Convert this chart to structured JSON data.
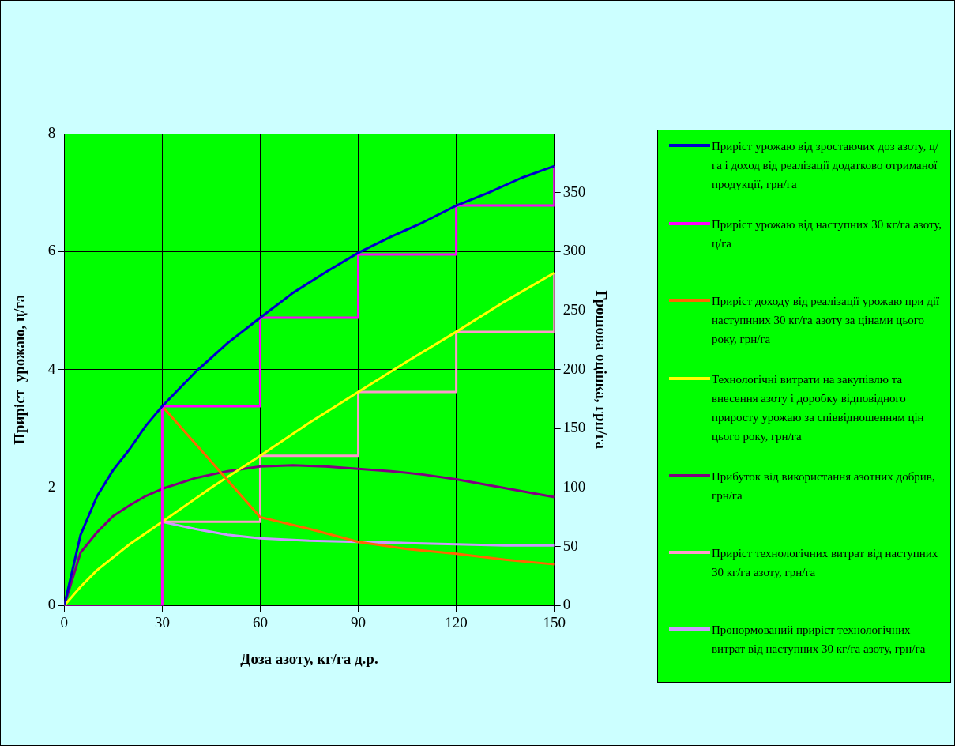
{
  "chart_data": {
    "type": "line",
    "xlabel": "Доза азоту, кг/га д.р.",
    "ylabel": "Приріст  урожаю, ц/га",
    "y2label": "Грошова оцінка, грн/га",
    "xlim": [
      0,
      150
    ],
    "xticks": [
      0,
      30,
      60,
      90,
      120,
      150
    ],
    "ylim": [
      0,
      8
    ],
    "yticks": [
      0,
      2,
      4,
      6,
      8
    ],
    "y2lim": [
      0,
      400
    ],
    "y2ticks": [
      0,
      50,
      100,
      150,
      200,
      250,
      300,
      350
    ],
    "grid": true,
    "legend": "right",
    "marker": "none",
    "series": [
      {
        "name": "Приріст  урожаю  від  зростаючих  доз азоту,  ц/га  і  доход  від  реалізації додатково  отриманої  продукції,  грн/га",
        "axis": "y",
        "color": "#0000cc",
        "x": [
          0,
          5,
          10,
          15,
          20,
          25,
          30,
          40,
          50,
          60,
          70,
          80,
          90,
          100,
          110,
          120,
          130,
          140,
          150
        ],
        "values": [
          0,
          1.2,
          1.85,
          2.3,
          2.65,
          3.05,
          3.38,
          3.95,
          4.45,
          4.88,
          5.3,
          5.65,
          5.98,
          6.25,
          6.5,
          6.78,
          7.0,
          7.25,
          7.45
        ]
      },
      {
        "name": "Приріст  урожаю  від  наступних  30 кг/га азоту, ц/га",
        "type": "step",
        "axis": "y",
        "color": "#ff00ff",
        "x": [
          0,
          30,
          60,
          90,
          120,
          150
        ],
        "values": [
          0,
          3.38,
          4.88,
          5.95,
          6.78,
          7.45
        ]
      },
      {
        "name": "Приріст  доходу  від реалізації   урожаю при  дії  наступнних  30 кг/га азоту за цінами  цього  року,  грн/га",
        "axis": "y2",
        "color": "#ff6600",
        "x": [
          30,
          60,
          75,
          90,
          105,
          120,
          135,
          150
        ],
        "values": [
          169,
          75,
          65,
          54,
          48,
          44,
          39,
          35
        ]
      },
      {
        "name": "Технологічні  витрати  на закупівлю  та внесення  азоту і доробку  відповідного приросту  урожаю  за співвідношенням цін   цього  року,  грн/га",
        "axis": "y2",
        "color": "#ffff00",
        "x": [
          0,
          5,
          10,
          20,
          30,
          45,
          60,
          75,
          90,
          105,
          120,
          135,
          150
        ],
        "values": [
          0,
          16,
          30,
          52,
          71,
          100,
          127,
          155,
          181,
          207,
          232,
          258,
          282
        ]
      },
      {
        "name": "Прибуток  від  використання  азотних добрив,  грн/га",
        "axis": "y2",
        "color": "#800080",
        "x": [
          0,
          5,
          10,
          15,
          20,
          25,
          30,
          40,
          50,
          60,
          70,
          80,
          90,
          100,
          110,
          120,
          130,
          140,
          150
        ],
        "values": [
          0,
          45,
          62,
          76,
          85,
          93,
          99,
          108,
          114,
          118,
          119,
          118,
          116,
          114,
          111,
          107,
          102,
          97,
          92
        ]
      },
      {
        "name": "Приріст  технологічних  витрат від наступних  30 кг/га азоту, грн/га",
        "type": "step",
        "axis": "y2",
        "color": "#ff99cc",
        "x": [
          30,
          60,
          90,
          120,
          150
        ],
        "values": [
          71,
          127,
          181,
          232,
          282
        ]
      },
      {
        "name": "Пронормований  приріст технологічних  витрат від  наступних 30 кг/га азоту,  грн/га",
        "axis": "y2",
        "color": "#cc99ff",
        "x": [
          30,
          40,
          50,
          60,
          75,
          90,
          105,
          120,
          135,
          150
        ],
        "values": [
          71,
          65,
          60,
          57,
          55,
          54,
          53,
          52,
          51,
          51
        ]
      }
    ]
  }
}
